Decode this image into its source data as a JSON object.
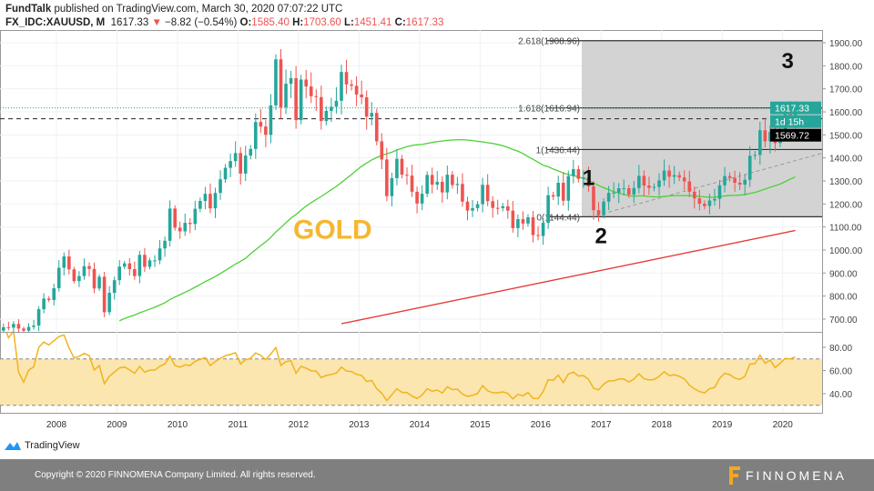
{
  "header": {
    "publisher": "FundTalk",
    "published": " published on TradingView.com, March 30, 2020 07:07:22 UTC",
    "symbol": "FX_IDC:XAUUSD, M",
    "last": "1617.33",
    "change": "−8.82 (−0.54%)",
    "o_label": "O:",
    "o": "1585.40",
    "h_label": "H:",
    "h": "1703.60",
    "l_label": "L:",
    "l": "1451.41",
    "c_label": "C:",
    "c": "1617.33"
  },
  "colors": {
    "up": "#26a69a",
    "down": "#ef5350",
    "ma_fast": "#4cd137",
    "ma_slow": "#e53935",
    "rsi": "#f0b41e",
    "gold_text": "#f5b731"
  },
  "chart_data": {
    "type": "candlestick",
    "title": "GOLD",
    "interval": "monthly",
    "start": "2007-01",
    "closes": [
      650,
      665,
      663,
      679,
      659,
      650,
      666,
      672,
      743,
      789,
      783,
      834,
      923,
      972,
      916,
      865,
      887,
      930,
      918,
      833,
      884,
      730,
      814,
      869,
      928,
      942,
      917,
      887,
      979,
      927,
      955,
      955,
      1007,
      1040,
      1180,
      1097,
      1081,
      1118,
      1113,
      1179,
      1213,
      1244,
      1181,
      1248,
      1307,
      1357,
      1386,
      1421,
      1332,
      1410,
      1439,
      1556,
      1536,
      1500,
      1628,
      1828,
      1620,
      1722,
      1746,
      1564,
      1740,
      1710,
      1668,
      1664,
      1560,
      1604,
      1622,
      1648,
      1773,
      1719,
      1713,
      1675,
      1663,
      1579,
      1595,
      1472,
      1393,
      1234,
      1312,
      1396,
      1327,
      1323,
      1253,
      1202,
      1244,
      1326,
      1284,
      1296,
      1250,
      1327,
      1282,
      1287,
      1210,
      1171,
      1182,
      1199,
      1283,
      1212,
      1183,
      1182,
      1190,
      1171,
      1095,
      1134,
      1115,
      1142,
      1065,
      1061,
      1118,
      1238,
      1232,
      1292,
      1214,
      1321,
      1351,
      1309,
      1315,
      1276,
      1173,
      1151,
      1210,
      1248,
      1249,
      1268,
      1268,
      1241,
      1269,
      1322,
      1280,
      1270,
      1274,
      1302,
      1345,
      1318,
      1325,
      1315,
      1298,
      1253,
      1224,
      1201,
      1191,
      1215,
      1222,
      1281,
      1321,
      1313,
      1292,
      1284,
      1305,
      1409,
      1413,
      1520,
      1472,
      1513,
      1464,
      1517,
      1589,
      1585,
      1617
    ],
    "price_ticks": [
      "1900.00",
      "1800.00",
      "1700.00",
      "1600.00",
      "1500.00",
      "1400.00",
      "1300.00",
      "1200.00",
      "1100.00",
      "1000.00",
      "900.00",
      "800.00",
      "700.00"
    ],
    "ylim": [
      650,
      1950
    ],
    "year_ticks": [
      "2008",
      "2009",
      "2010",
      "2011",
      "2012",
      "2013",
      "2014",
      "2015",
      "2016",
      "2017",
      "2018",
      "2019",
      "2020"
    ],
    "rsi_ticks": [
      "80.00",
      "60.00",
      "40.00"
    ],
    "rsi_band": [
      30,
      70
    ],
    "fib": [
      {
        "label": "2.618(1908.96)",
        "value": 1908.96
      },
      {
        "label": "1.618(1616.94)",
        "value": 1616.94
      },
      {
        "label": "1(1436.44)",
        "value": 1436.44
      },
      {
        "label": "0(1144.44)",
        "value": 1144.44
      }
    ],
    "last_price_label": "1617.33",
    "countdown_label": "1d 15h",
    "line_price_label": "1569.72",
    "line_price": 1569.72,
    "slow_ma": {
      "from": [
        "2012-09",
        680
      ],
      "to": [
        "2020-03",
        1085
      ]
    },
    "wave_labels": [
      {
        "text": "1",
        "month": "2016-07",
        "price": 1400
      },
      {
        "text": "2",
        "month": "2016-12",
        "price": 1030
      },
      {
        "text": "3",
        "month": "2020-01",
        "price": 1790
      }
    ]
  },
  "branding": {
    "tv": "TradingView",
    "copyright": "Copyright © 2020 FINNOMENA Company Limited. All rights reserved.",
    "finnomena": "FINNOMENA"
  }
}
